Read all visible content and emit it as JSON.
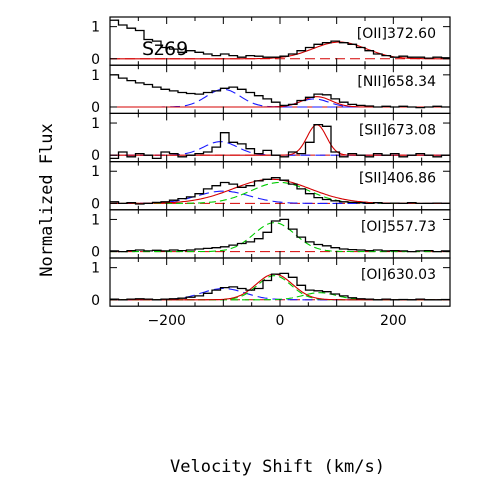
{
  "figure": {
    "object_label": "Sz69",
    "xlabel": "Velocity Shift (km/s)",
    "ylabel": "Normalized Flux"
  },
  "colors": {
    "observed": "#000000",
    "total_fit": "#d40000",
    "zero_line": "#d40000",
    "blue_component": "#1a1aff",
    "green_component": "#00cc00"
  },
  "chart_data": [
    {
      "type": "line",
      "label": "[OII]372.60",
      "xlim": [
        -300,
        300
      ],
      "ylim": [
        -0.2,
        1.3
      ],
      "yticks": [
        0,
        1
      ],
      "xticks": [
        -200,
        0,
        200
      ],
      "zero_line": 0,
      "observed_steps": {
        "x": [
          -300,
          -285,
          -270,
          -255,
          -240,
          -225,
          -210,
          -195,
          -180,
          -165,
          -150,
          -135,
          -120,
          -105,
          -90,
          -75,
          -60,
          -45,
          -30,
          -15,
          0,
          15,
          30,
          45,
          60,
          75,
          90,
          105,
          120,
          135,
          150,
          165,
          180,
          195,
          210,
          225,
          240,
          255,
          270,
          285
        ],
        "y": [
          1.2,
          1.05,
          0.95,
          0.88,
          0.6,
          0.55,
          0.35,
          0.3,
          0.2,
          0.25,
          0.2,
          0.15,
          0.1,
          0.15,
          0.1,
          0.05,
          0.1,
          0.08,
          0.05,
          0.05,
          0.08,
          0.15,
          0.25,
          0.35,
          0.45,
          0.5,
          0.55,
          0.5,
          0.45,
          0.35,
          0.25,
          0.15,
          0.1,
          0.05,
          0.08,
          0.05,
          0.05,
          0.02,
          0.05,
          0.03
        ]
      },
      "gaussians": [
        {
          "component": "total",
          "amplitude": 0.52,
          "center": 105,
          "fwhm": 110
        }
      ]
    },
    {
      "type": "line",
      "label": "[NII]658.34",
      "xlim": [
        -300,
        300
      ],
      "ylim": [
        -0.2,
        1.3
      ],
      "yticks": [
        0,
        1
      ],
      "xticks": [
        -200,
        0,
        200
      ],
      "zero_line": 0,
      "observed_steps": {
        "x": [
          -300,
          -285,
          -270,
          -255,
          -240,
          -225,
          -210,
          -195,
          -180,
          -165,
          -150,
          -135,
          -120,
          -105,
          -90,
          -75,
          -60,
          -45,
          -30,
          -15,
          0,
          15,
          30,
          45,
          60,
          75,
          90,
          105,
          120,
          135,
          150,
          165,
          180,
          195,
          210,
          225,
          240,
          255,
          270,
          285
        ],
        "y": [
          1.0,
          0.9,
          0.82,
          0.75,
          0.7,
          0.62,
          0.55,
          0.5,
          0.45,
          0.42,
          0.4,
          0.45,
          0.5,
          0.58,
          0.62,
          0.55,
          0.45,
          0.35,
          0.25,
          0.15,
          0.05,
          0.08,
          0.2,
          0.3,
          0.4,
          0.38,
          0.25,
          0.15,
          0.08,
          0.05,
          0.03,
          0.0,
          0.02,
          0.0,
          0.02,
          0.0,
          -0.02,
          0.0,
          0.02,
          0.0
        ]
      },
      "gaussians": [
        {
          "component": "blue",
          "amplitude": 0.55,
          "center": -100,
          "fwhm": 70
        },
        {
          "component": "blue",
          "amplitude": 0.25,
          "center": 60,
          "fwhm": 60
        },
        {
          "component": "total",
          "amplitude": 0.32,
          "center": 65,
          "fwhm": 60
        }
      ]
    },
    {
      "type": "line",
      "label": "[SII]673.08",
      "xlim": [
        -300,
        300
      ],
      "ylim": [
        -0.2,
        1.3
      ],
      "yticks": [
        0,
        1
      ],
      "xticks": [
        -200,
        0,
        200
      ],
      "zero_line": 0,
      "observed_steps": {
        "x": [
          -300,
          -285,
          -270,
          -255,
          -240,
          -225,
          -210,
          -195,
          -180,
          -165,
          -150,
          -135,
          -120,
          -105,
          -90,
          -75,
          -60,
          -45,
          -30,
          -15,
          0,
          15,
          30,
          45,
          60,
          75,
          90,
          105,
          120,
          135,
          150,
          165,
          180,
          195,
          210,
          225,
          240,
          255,
          270,
          285
        ],
        "y": [
          -0.1,
          0.1,
          -0.05,
          0.05,
          0.0,
          -0.1,
          0.1,
          0.05,
          -0.05,
          0.0,
          0.05,
          0.1,
          0.25,
          0.7,
          0.4,
          0.35,
          0.2,
          0.05,
          0.15,
          0.0,
          -0.05,
          0.1,
          0.05,
          0.4,
          0.95,
          0.9,
          0.1,
          -0.05,
          0.05,
          0.0,
          -0.05,
          0.05,
          0.0,
          0.05,
          -0.05,
          0.0,
          0.05,
          0.0,
          -0.05,
          0.0
        ]
      },
      "gaussians": [
        {
          "component": "blue",
          "amplitude": 0.42,
          "center": -105,
          "fwhm": 70
        },
        {
          "component": "total",
          "amplitude": 0.95,
          "center": 65,
          "fwhm": 40
        }
      ]
    },
    {
      "type": "line",
      "label": "[SII]406.86",
      "xlim": [
        -300,
        300
      ],
      "ylim": [
        -0.2,
        1.3
      ],
      "yticks": [
        0,
        1
      ],
      "xticks": [
        -200,
        0,
        200
      ],
      "zero_line": 0,
      "observed_steps": {
        "x": [
          -300,
          -285,
          -270,
          -255,
          -240,
          -225,
          -210,
          -195,
          -180,
          -165,
          -150,
          -135,
          -120,
          -105,
          -90,
          -75,
          -60,
          -45,
          -30,
          -15,
          0,
          15,
          30,
          45,
          60,
          75,
          90,
          105,
          120,
          135,
          150,
          165,
          180,
          195,
          210,
          225,
          240,
          255,
          270,
          285
        ],
        "y": [
          0.05,
          0.0,
          0.02,
          -0.02,
          0.0,
          0.03,
          0.05,
          0.1,
          0.15,
          0.2,
          0.3,
          0.45,
          0.55,
          0.65,
          0.6,
          0.5,
          0.55,
          0.7,
          0.75,
          0.8,
          0.72,
          0.6,
          0.45,
          0.3,
          0.18,
          0.12,
          0.08,
          0.05,
          0.03,
          0.02,
          0.0,
          0.02,
          0.0,
          0.01,
          0.0,
          0.02,
          0.0,
          0.0,
          0.01,
          0.0
        ]
      },
      "gaussians": [
        {
          "component": "blue",
          "amplitude": 0.38,
          "center": -100,
          "fwhm": 110
        },
        {
          "component": "green",
          "amplitude": 0.65,
          "center": 0,
          "fwhm": 120
        },
        {
          "component": "total",
          "amplitude": 0.75,
          "center": -15,
          "fwhm": 160
        }
      ]
    },
    {
      "type": "line",
      "label": "[OI]557.73",
      "xlim": [
        -300,
        300
      ],
      "ylim": [
        -0.2,
        1.3
      ],
      "yticks": [
        0,
        1
      ],
      "xticks": [
        -200,
        0,
        200
      ],
      "zero_line": 0,
      "observed_steps": {
        "x": [
          -300,
          -285,
          -270,
          -255,
          -240,
          -225,
          -210,
          -195,
          -180,
          -165,
          -150,
          -135,
          -120,
          -105,
          -90,
          -75,
          -60,
          -45,
          -30,
          -15,
          0,
          15,
          30,
          45,
          60,
          75,
          90,
          105,
          120,
          135,
          150,
          165,
          180,
          195,
          210,
          225,
          240,
          255,
          270,
          285
        ],
        "y": [
          0.02,
          0.0,
          0.03,
          0.05,
          0.02,
          0.04,
          0.02,
          0.05,
          0.03,
          0.05,
          0.08,
          0.1,
          0.12,
          0.15,
          0.2,
          0.25,
          0.3,
          0.4,
          0.6,
          0.95,
          1.0,
          0.7,
          0.45,
          0.3,
          0.22,
          0.18,
          0.12,
          0.08,
          0.06,
          0.05,
          0.03,
          0.05,
          0.02,
          0.03,
          0.02,
          0.0,
          0.02,
          0.03,
          0.0,
          0.02
        ]
      },
      "gaussians": [
        {
          "component": "green",
          "amplitude": 0.9,
          "center": -10,
          "fwhm": 85
        }
      ]
    },
    {
      "type": "line",
      "label": "[OI]630.03",
      "xlim": [
        -300,
        300
      ],
      "ylim": [
        -0.2,
        1.3
      ],
      "yticks": [
        0,
        1
      ],
      "xticks": [
        -200,
        0,
        200
      ],
      "zero_line": 0,
      "observed_steps": {
        "x": [
          -300,
          -285,
          -270,
          -255,
          -240,
          -225,
          -210,
          -195,
          -180,
          -165,
          -150,
          -135,
          -120,
          -105,
          -90,
          -75,
          -60,
          -45,
          -30,
          -15,
          0,
          15,
          30,
          45,
          60,
          75,
          90,
          105,
          120,
          135,
          150,
          165,
          180,
          195,
          210,
          225,
          240,
          255,
          270,
          285
        ],
        "y": [
          0.02,
          0.0,
          0.02,
          0.03,
          0.02,
          0.0,
          0.02,
          0.03,
          0.05,
          0.08,
          0.12,
          0.2,
          0.3,
          0.38,
          0.4,
          0.35,
          0.3,
          0.35,
          0.6,
          0.8,
          0.82,
          0.7,
          0.45,
          0.3,
          0.28,
          0.25,
          0.18,
          0.12,
          0.06,
          0.03,
          0.02,
          0.0,
          0.02,
          0.0,
          0.01,
          0.0,
          0.02,
          0.0,
          0.0,
          0.01
        ]
      },
      "gaussians": [
        {
          "component": "blue",
          "amplitude": 0.35,
          "center": -100,
          "fwhm": 90
        },
        {
          "component": "green",
          "amplitude": 0.75,
          "center": -10,
          "fwhm": 70
        },
        {
          "component": "green",
          "amplitude": 0.22,
          "center": 70,
          "fwhm": 70
        },
        {
          "component": "total",
          "amplitude": 0.8,
          "center": -10,
          "fwhm": 75
        }
      ]
    }
  ]
}
